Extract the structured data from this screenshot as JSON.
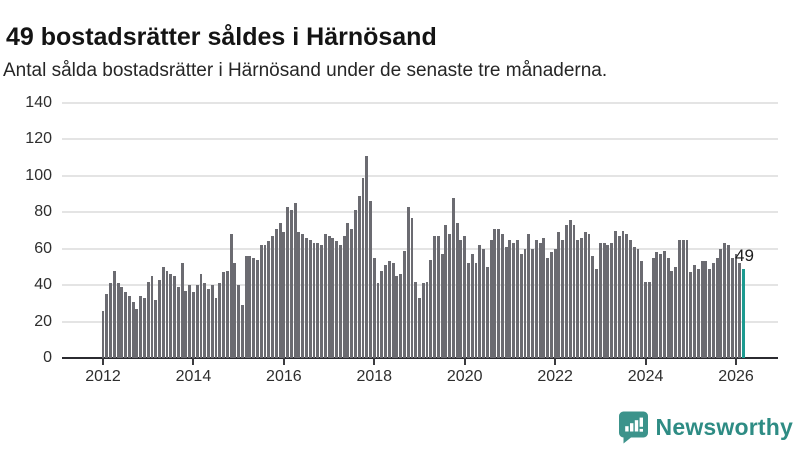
{
  "header": {
    "title": "49 bostadsrätter såldes i Härnösand",
    "subtitle": "Antal sålda bostadsrätter i Härnösand under de senaste tre månaderna."
  },
  "chart_data": {
    "type": "bar",
    "title": "49 bostadsrätter såldes i Härnösand",
    "subtitle": "Antal sålda bostadsrätter i Härnösand under de senaste tre månaderna.",
    "x_start": "2012-01",
    "x_end": "2026-03",
    "x_frequency": "monthly",
    "x_tick_labels": [
      "2012",
      "2014",
      "2016",
      "2018",
      "2020",
      "2022",
      "2024",
      "2026"
    ],
    "y_ticks": [
      0,
      20,
      40,
      60,
      80,
      100,
      120,
      140
    ],
    "ylim": [
      0,
      140
    ],
    "grid": true,
    "gridline_color": "#e4e4e4",
    "axis_color": "#2b2b30",
    "bar_color": "#6b6b71",
    "values": [
      26,
      35,
      41,
      48,
      41,
      39,
      36,
      34,
      31,
      27,
      34,
      33,
      42,
      45,
      32,
      43,
      50,
      48,
      46,
      45,
      39,
      52,
      37,
      40,
      36,
      40,
      46,
      41,
      38,
      40,
      33,
      41,
      47,
      48,
      68,
      52,
      40,
      29,
      56,
      56,
      55,
      54,
      62,
      62,
      64,
      67,
      71,
      74,
      69,
      83,
      81,
      85,
      69,
      68,
      66,
      65,
      63,
      63,
      62,
      68,
      67,
      66,
      64,
      62,
      67,
      74,
      71,
      81,
      89,
      99,
      111,
      86,
      55,
      41,
      48,
      51,
      53,
      52,
      45,
      46,
      59,
      83,
      77,
      42,
      33,
      41,
      42,
      54,
      67,
      67,
      57,
      73,
      68,
      88,
      74,
      65,
      67,
      52,
      57,
      52,
      62,
      60,
      50,
      65,
      71,
      71,
      68,
      61,
      65,
      63,
      65,
      57,
      60,
      68,
      60,
      65,
      63,
      66,
      55,
      58,
      60,
      69,
      65,
      73,
      76,
      73,
      65,
      66,
      69,
      68,
      56,
      49,
      63,
      63,
      62,
      63,
      70,
      67,
      70,
      68,
      65,
      61,
      60,
      53,
      42,
      42,
      55,
      58,
      57,
      59,
      55,
      48,
      50,
      65,
      65,
      65,
      47,
      51,
      49,
      53,
      53,
      49,
      52,
      55,
      60,
      63,
      62,
      55,
      57,
      52,
      49
    ],
    "highlight": {
      "index": 170,
      "value": 49,
      "label": "49",
      "color": "#1d9a90"
    }
  },
  "branding": {
    "logo_text": "Newsworthy",
    "logo_color": "#3c938b",
    "logo_text_color": "#2e8c84",
    "logo_icon": "bar-chart-speech-bubble"
  }
}
